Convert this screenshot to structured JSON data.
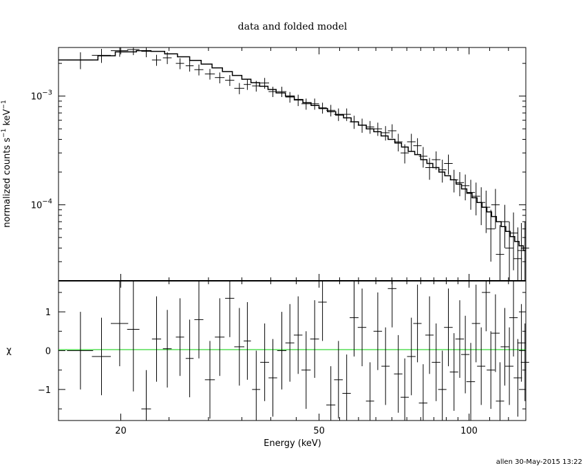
{
  "footer": "allen 30-May-2015 13:22",
  "chart_data": [
    {
      "type": "scatter",
      "title": "data and folded model",
      "xlabel": "",
      "ylabel": "normalized counts s⁻¹ keV⁻¹",
      "xscale": "log",
      "yscale": "log",
      "xlim": [
        15,
        130
      ],
      "ylim": [
        2e-05,
        0.0028
      ],
      "ytick_labels": [
        {
          "value": 0.001,
          "base": "10",
          "exp": "−3"
        },
        {
          "value": 0.0001,
          "base": "10",
          "exp": "−4"
        }
      ],
      "series": [
        {
          "kind": "data",
          "points": [
            [
              16.6,
              0.00215,
              1.0,
              0.00038
            ],
            [
              18.3,
              0.00237,
              0.8,
              0.00035
            ],
            [
              19.9,
              0.00262,
              0.8,
              0.00032
            ],
            [
              21.2,
              0.00268,
              0.6,
              0.0003
            ],
            [
              22.5,
              0.00258,
              0.5,
              0.0003
            ],
            [
              23.6,
              0.00215,
              0.5,
              0.00025
            ],
            [
              24.8,
              0.00225,
              0.5,
              0.00028
            ],
            [
              26.3,
              0.002,
              0.5,
              0.00023
            ],
            [
              27.5,
              0.0019,
              0.5,
              0.00022
            ],
            [
              28.7,
              0.00175,
              0.6,
              0.0002
            ],
            [
              30.2,
              0.0016,
              0.7,
              0.00018
            ],
            [
              31.6,
              0.00148,
              0.7,
              0.00017
            ],
            [
              33.1,
              0.0014,
              0.7,
              0.00016
            ],
            [
              34.6,
              0.00118,
              0.8,
              0.00014
            ],
            [
              35.9,
              0.00128,
              0.6,
              0.00014
            ],
            [
              37.4,
              0.00124,
              0.7,
              0.00014
            ],
            [
              38.9,
              0.00132,
              0.8,
              0.00015
            ],
            [
              40.4,
              0.0011,
              0.8,
              0.00012
            ],
            [
              42.1,
              0.0011,
              0.9,
              0.00012
            ],
            [
              43.7,
              0.00098,
              0.9,
              0.00011
            ],
            [
              45.4,
              0.00092,
              0.9,
              0.00011
            ],
            [
              47.1,
              0.00085,
              1.0,
              0.0001
            ],
            [
              49.0,
              0.00085,
              1.0,
              0.0001
            ],
            [
              50.8,
              0.00078,
              1.0,
              9e-05
            ],
            [
              52.8,
              0.00074,
              1.1,
              9e-05
            ],
            [
              54.7,
              0.00068,
              1.1,
              9e-05
            ],
            [
              56.8,
              0.00068,
              1.1,
              9e-05
            ],
            [
              58.8,
              0.00058,
              1.2,
              8e-05
            ],
            [
              61.0,
              0.00054,
              1.2,
              8e-05
            ],
            [
              63.3,
              0.00052,
              1.2,
              7e-05
            ],
            [
              65.6,
              0.0005,
              1.3,
              7e-05
            ],
            [
              68.0,
              0.00046,
              1.3,
              7e-05
            ],
            [
              70.1,
              0.00048,
              1.4,
              7e-05
            ],
            [
              72.1,
              0.00038,
              1.4,
              7e-05
            ],
            [
              74.3,
              0.0003,
              1.4,
              6e-05
            ],
            [
              76.6,
              0.00038,
              1.5,
              7e-05
            ],
            [
              78.8,
              0.00035,
              1.5,
              6e-05
            ],
            [
              80.9,
              0.00028,
              1.6,
              6e-05
            ],
            [
              83.3,
              0.00022,
              1.6,
              5e-05
            ],
            [
              85.9,
              0.00026,
              1.7,
              5e-05
            ],
            [
              88.4,
              0.00021,
              1.7,
              5e-05
            ],
            [
              90.9,
              0.00024,
              1.8,
              5e-05
            ],
            [
              93.3,
              0.00017,
              1.8,
              4e-05
            ],
            [
              95.8,
              0.00016,
              1.9,
              4e-05
            ],
            [
              98.3,
              0.00015,
              1.9,
              4e-05
            ],
            [
              100.8,
              0.00013,
              2.0,
              4e-05
            ],
            [
              103.3,
              0.00012,
              2.0,
              4e-05
            ],
            [
              105.8,
              0.000105,
              2.0,
              4e-05
            ],
            [
              108.2,
              9.5e-05,
              2.1,
              4e-05
            ],
            [
              110.6,
              6e-05,
              2.1,
              3e-05
            ],
            [
              113.0,
              0.0001,
              2.2,
              4e-05
            ],
            [
              115.4,
              3.5e-05,
              2.2,
              3e-05
            ],
            [
              118.0,
              7e-05,
              2.3,
              3e-05
            ],
            [
              120.5,
              4e-05,
              2.3,
              3e-05
            ],
            [
              122.8,
              5.5e-05,
              2.4,
              3e-05
            ],
            [
              125.3,
              3.2e-05,
              2.4,
              3e-05
            ],
            [
              127.4,
              3.8e-05,
              2.4,
              3e-05
            ],
            [
              129.5,
              4e-05,
              2.5,
              3e-05
            ]
          ]
        },
        {
          "kind": "model",
          "steps": [
            [
              15.0,
              0.00215
            ],
            [
              18.0,
              0.00235
            ],
            [
              19.5,
              0.00255
            ],
            [
              21.5,
              0.00262
            ],
            [
              23.0,
              0.00258
            ],
            [
              24.5,
              0.00245
            ],
            [
              26.0,
              0.0023
            ],
            [
              27.5,
              0.00213
            ],
            [
              29.0,
              0.00197
            ],
            [
              30.5,
              0.00182
            ],
            [
              32.0,
              0.00168
            ],
            [
              33.5,
              0.00155
            ],
            [
              35.0,
              0.00143
            ],
            [
              36.5,
              0.00133
            ],
            [
              38.0,
              0.00123
            ],
            [
              39.5,
              0.00115
            ],
            [
              41.0,
              0.00107
            ],
            [
              42.8,
              0.001
            ],
            [
              44.6,
              0.00093
            ],
            [
              46.4,
              0.00087
            ],
            [
              48.2,
              0.00082
            ],
            [
              50.0,
              0.00077
            ],
            [
              52.0,
              0.00072
            ],
            [
              54.0,
              0.00067
            ],
            [
              56.0,
              0.00063
            ],
            [
              58.0,
              0.00058
            ],
            [
              60.0,
              0.00054
            ],
            [
              62.2,
              0.0005
            ],
            [
              64.4,
              0.00047
            ],
            [
              66.6,
              0.00043
            ],
            [
              68.8,
              0.0004
            ],
            [
              71.0,
              0.00037
            ],
            [
              73.2,
              0.00034
            ],
            [
              75.5,
              0.00031
            ],
            [
              77.8,
              0.00029
            ],
            [
              80.0,
              0.00026
            ],
            [
              82.3,
              0.00024
            ],
            [
              84.6,
              0.00022
            ],
            [
              87.0,
              0.0002
            ],
            [
              89.4,
              0.000185
            ],
            [
              91.8,
              0.00017
            ],
            [
              94.2,
              0.000155
            ],
            [
              96.6,
              0.00014
            ],
            [
              99.0,
              0.000128
            ],
            [
              101.4,
              0.000116
            ],
            [
              103.8,
              0.000105
            ],
            [
              106.2,
              9.5e-05
            ],
            [
              108.6,
              8.6e-05
            ],
            [
              111.0,
              7.8e-05
            ],
            [
              113.5,
              7e-05
            ],
            [
              116.0,
              6.3e-05
            ],
            [
              118.5,
              5.7e-05
            ],
            [
              121.0,
              5.1e-05
            ],
            [
              123.5,
              4.6e-05
            ],
            [
              126.0,
              4.2e-05
            ],
            [
              128.5,
              3.8e-05
            ],
            [
              130.0,
              3.6e-05
            ]
          ]
        }
      ]
    },
    {
      "type": "scatter",
      "title": "",
      "xlabel": "Energy (keV)",
      "ylabel": "χ",
      "xscale": "log",
      "yscale": "linear",
      "xlim": [
        15,
        130
      ],
      "ylim": [
        -1.8,
        1.8
      ],
      "xtick_labels": [
        {
          "value": 20,
          "label": "20"
        },
        {
          "value": 50,
          "label": "50"
        },
        {
          "value": 100,
          "label": "100"
        }
      ],
      "ytick_labels": [
        {
          "value": 1,
          "label": "1"
        },
        {
          "value": 0,
          "label": "0"
        },
        {
          "value": -1,
          "label": "−1"
        }
      ],
      "zero_line_color": "#00cc00",
      "points": [
        [
          16.6,
          0.0,
          1.0,
          1.0
        ],
        [
          18.3,
          -0.15,
          0.8,
          1.0
        ],
        [
          19.9,
          0.7,
          0.8,
          1.1
        ],
        [
          21.2,
          0.55,
          0.6,
          1.6
        ],
        [
          22.5,
          -1.5,
          0.5,
          1.0
        ],
        [
          23.6,
          0.3,
          0.5,
          1.1
        ],
        [
          24.8,
          0.05,
          0.5,
          1.0
        ],
        [
          26.3,
          0.35,
          0.5,
          1.0
        ],
        [
          27.5,
          -0.2,
          0.5,
          1.0
        ],
        [
          28.7,
          0.8,
          0.6,
          1.0
        ],
        [
          30.2,
          -0.75,
          0.7,
          1.0
        ],
        [
          31.6,
          0.35,
          0.7,
          1.0
        ],
        [
          33.1,
          1.35,
          0.7,
          1.0
        ],
        [
          34.6,
          0.1,
          0.8,
          1.0
        ],
        [
          35.9,
          0.25,
          0.6,
          1.0
        ],
        [
          37.4,
          -1.0,
          0.7,
          1.0
        ],
        [
          38.9,
          -0.3,
          0.8,
          1.0
        ],
        [
          40.4,
          -0.7,
          0.8,
          1.0
        ],
        [
          42.1,
          0.0,
          0.9,
          1.0
        ],
        [
          43.7,
          0.2,
          0.9,
          1.0
        ],
        [
          45.4,
          0.4,
          0.9,
          1.0
        ],
        [
          47.1,
          -0.5,
          1.0,
          1.0
        ],
        [
          49.0,
          0.3,
          1.0,
          1.0
        ],
        [
          50.8,
          1.25,
          1.0,
          1.0
        ],
        [
          52.8,
          -1.4,
          1.1,
          1.0
        ],
        [
          54.7,
          -0.75,
          1.1,
          1.0
        ],
        [
          56.8,
          -1.1,
          1.1,
          1.0
        ],
        [
          58.8,
          0.85,
          1.2,
          1.0
        ],
        [
          61.0,
          0.6,
          1.2,
          1.0
        ],
        [
          63.3,
          -1.3,
          1.2,
          1.0
        ],
        [
          65.6,
          0.5,
          1.3,
          1.0
        ],
        [
          68.0,
          -0.4,
          1.3,
          1.0
        ],
        [
          70.1,
          1.6,
          1.4,
          1.0
        ],
        [
          72.1,
          -0.6,
          1.4,
          1.0
        ],
        [
          74.3,
          -1.2,
          1.4,
          1.0
        ],
        [
          76.6,
          -0.15,
          1.5,
          1.0
        ],
        [
          78.8,
          0.7,
          1.5,
          1.0
        ],
        [
          80.9,
          -1.35,
          1.6,
          1.0
        ],
        [
          83.3,
          0.4,
          1.6,
          1.0
        ],
        [
          85.9,
          -0.3,
          1.7,
          1.0
        ],
        [
          88.4,
          -1.0,
          1.7,
          1.0
        ],
        [
          90.9,
          0.6,
          1.8,
          1.0
        ],
        [
          93.3,
          -0.55,
          1.8,
          1.0
        ],
        [
          95.8,
          0.3,
          1.9,
          1.0
        ],
        [
          98.3,
          -0.1,
          1.9,
          1.0
        ],
        [
          100.8,
          -0.8,
          2.0,
          1.0
        ],
        [
          103.3,
          0.7,
          2.0,
          1.0
        ],
        [
          105.8,
          -0.4,
          2.0,
          1.0
        ],
        [
          108.2,
          1.5,
          2.1,
          1.0
        ],
        [
          110.6,
          -0.5,
          2.1,
          1.0
        ],
        [
          113.0,
          0.45,
          2.2,
          1.0
        ],
        [
          115.4,
          -1.3,
          2.2,
          1.0
        ],
        [
          118.0,
          0.1,
          2.3,
          1.0
        ],
        [
          120.5,
          -0.4,
          2.3,
          1.0
        ],
        [
          122.8,
          0.85,
          2.4,
          1.0
        ],
        [
          125.3,
          -0.7,
          2.4,
          1.0
        ],
        [
          127.4,
          0.2,
          2.4,
          1.0
        ],
        [
          129.5,
          -0.3,
          2.5,
          1.0
        ]
      ]
    }
  ]
}
